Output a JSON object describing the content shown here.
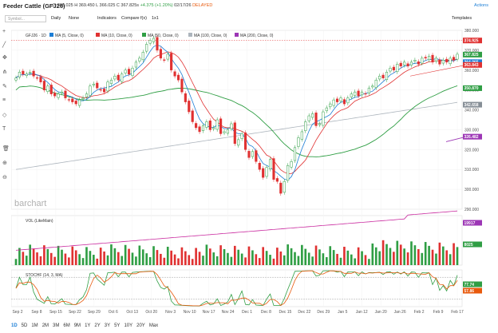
{
  "header": {
    "title": "Feeder Cattle (GFJ26)",
    "quote": "O 366.025  H 369.450  L 366.025  C 367.825s",
    "change": "+4.375 (+1.20%)",
    "date": "02/17/26",
    "status": "DELAYED",
    "actions_label": "Actions"
  },
  "toolbar": {
    "search_placeholder": "Symbol...",
    "interval": "Daily",
    "none": "None",
    "indicators": "Indicators",
    "compare": "Compare",
    "fx": "f(x)",
    "layout": "1x1",
    "templates": "Templates"
  },
  "price_legend": {
    "symbol": "GFJ26 · 1D",
    "items": [
      {
        "label": "MA (5, Close, 0)",
        "color": "#1c7ed6"
      },
      {
        "label": "MA (10, Close, 0)",
        "color": "#e03131"
      },
      {
        "label": "MA (50, Close, 0)",
        "color": "#2f9e44"
      },
      {
        "label": "MA (100, Close, 0)",
        "color": "#adb5bd"
      },
      {
        "label": "MA (200, Close, 0)",
        "color": "#9c36b5"
      }
    ]
  },
  "vol_legend": "VOL (LikeMain)",
  "stoch_legend": "STOCHF (14, 3, MA)",
  "watermark": "barchart",
  "price_axis": [
    "380.000",
    "370.000",
    "360.000",
    "350.000",
    "340.000",
    "330.000",
    "320.000",
    "310.000",
    "300.000",
    "290.000"
  ],
  "price_badges": [
    {
      "text": "374.925",
      "color": "#e03131",
      "val": 374.9
    },
    {
      "text": "367.825",
      "color": "#2f9e44",
      "val": 367.8
    },
    {
      "text": "364.065",
      "color": "#1c7ed6",
      "val": 364.0
    },
    {
      "text": "363.843",
      "color": "#e03131",
      "val": 362.6
    },
    {
      "text": "350.870",
      "color": "#2f9e44",
      "val": 350.9
    },
    {
      "text": "342.658",
      "color": "#868e96",
      "val": 342.6
    },
    {
      "text": "326.482",
      "color": "#9c36b5",
      "val": 326.5
    }
  ],
  "vol_badges": [
    {
      "text": "19917",
      "color": "#9c36b5"
    },
    {
      "text": "8025",
      "color": "#2f9e44"
    }
  ],
  "stoch_badges": [
    {
      "text": "77.74",
      "color": "#2f9e44"
    },
    {
      "text": "57.86",
      "color": "#e8590c"
    }
  ],
  "x_axis": [
    "Sep 2",
    "Sep 8",
    "Sep 15",
    "Sep 22",
    "Sep 29",
    "Oct 6",
    "Oct 13",
    "Oct 20",
    "Nov 3",
    "Nov 10",
    "Nov 17",
    "Nov 24",
    "Dec 1",
    "Dec 8",
    "Dec 15",
    "Dec 22",
    "Dec 29",
    "Jan 5",
    "Jan 12",
    "Jan 20",
    "Jan 26",
    "Feb 2",
    "Feb 9",
    "Feb 17"
  ],
  "ranges": [
    "1D",
    "5D",
    "1M",
    "2M",
    "3M",
    "6M",
    "9M",
    "1Y",
    "2Y",
    "3Y",
    "5Y",
    "10Y",
    "20Y",
    "Max"
  ],
  "ranges_selected": "1D",
  "chart_data": {
    "type": "candlestick",
    "ylim": [
      290,
      380
    ],
    "close": [
      356,
      359,
      358,
      358,
      359,
      357,
      356,
      354,
      350,
      352,
      348,
      347,
      348,
      349,
      346,
      345,
      344,
      343,
      345,
      346,
      348,
      352,
      353,
      351,
      350,
      349,
      354,
      355,
      357,
      355,
      358,
      360,
      358,
      361,
      364,
      366,
      369,
      373,
      375,
      376,
      370,
      366,
      365,
      368,
      360,
      357,
      355,
      349,
      344,
      339,
      334,
      331,
      329,
      332,
      334,
      330,
      331,
      335,
      328,
      329,
      330,
      333,
      323,
      325,
      328,
      320,
      316,
      319,
      314,
      310,
      306,
      311,
      315,
      305,
      304,
      298,
      304,
      312,
      314,
      321,
      326,
      329,
      334,
      337,
      338,
      332,
      333,
      339,
      341,
      343,
      345,
      344,
      346,
      343,
      346,
      348,
      349,
      347,
      349,
      348,
      351,
      352,
      355,
      357,
      356,
      359,
      361,
      360,
      363,
      362,
      364,
      362,
      364,
      365,
      363,
      366,
      366,
      367,
      364,
      366,
      363,
      365,
      364,
      366,
      365,
      368
    ]
  }
}
